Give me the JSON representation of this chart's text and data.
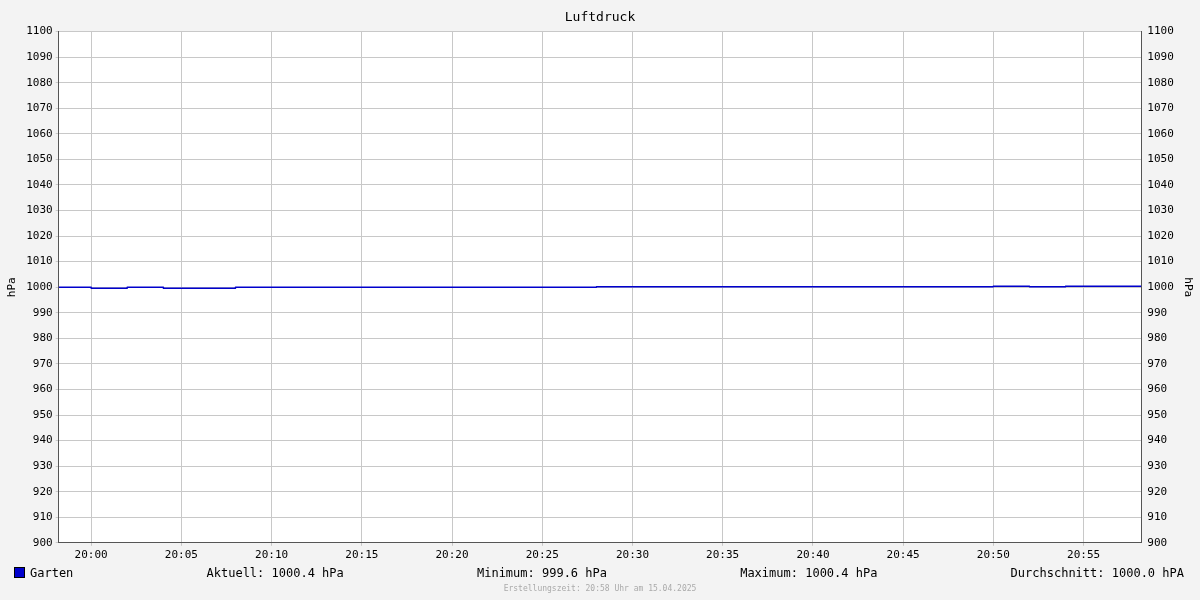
{
  "chart_data": {
    "type": "step",
    "title": "Luftdruck",
    "ylabel": "hPa",
    "y2label": "hPa",
    "x": [
      19.97,
      20.0,
      20.0333,
      20.0667,
      20.1333,
      20.4667,
      20.8333,
      20.8667,
      20.9,
      20.97
    ],
    "series": [
      {
        "name": "Garten",
        "color": "#0000cc",
        "values": [
          1000.0,
          999.6,
          1000.0,
          999.6,
          1000.0,
          1000.2,
          1000.4,
          1000.2,
          1000.4,
          1000.4
        ]
      }
    ],
    "xlim": [
      19.97,
      20.97
    ],
    "xticks": [
      {
        "value": 20.0,
        "label": "20:00"
      },
      {
        "value": 20.0833,
        "label": "20:05"
      },
      {
        "value": 20.1667,
        "label": "20:10"
      },
      {
        "value": 20.25,
        "label": "20:15"
      },
      {
        "value": 20.3333,
        "label": "20:20"
      },
      {
        "value": 20.4167,
        "label": "20:25"
      },
      {
        "value": 20.5,
        "label": "20:30"
      },
      {
        "value": 20.5833,
        "label": "20:35"
      },
      {
        "value": 20.6667,
        "label": "20:40"
      },
      {
        "value": 20.75,
        "label": "20:45"
      },
      {
        "value": 20.8333,
        "label": "20:50"
      },
      {
        "value": 20.9167,
        "label": "20:55"
      }
    ],
    "ylim": [
      900,
      1100
    ],
    "yticks": [
      900,
      910,
      920,
      930,
      940,
      950,
      960,
      970,
      980,
      990,
      1000,
      1010,
      1020,
      1030,
      1040,
      1050,
      1060,
      1070,
      1080,
      1090,
      1100
    ],
    "y2lim": [
      900,
      1100
    ],
    "y2ticks": [
      900,
      910,
      920,
      930,
      940,
      950,
      960,
      970,
      980,
      990,
      1000,
      1010,
      1020,
      1030,
      1040,
      1050,
      1060,
      1070,
      1080,
      1090,
      1100
    ],
    "grid": true,
    "legend": "bottom left",
    "line_style": "solid",
    "annotations": [
      "Aktuell: 1000.4 hPa",
      "Minimum: 999.6 hPa",
      "Maximum: 1000.4 hPa",
      "Durchschnitt: 1000.0 hPA",
      "Erstellungszeit: 20:58 Uhr am 15.04.2025"
    ]
  }
}
